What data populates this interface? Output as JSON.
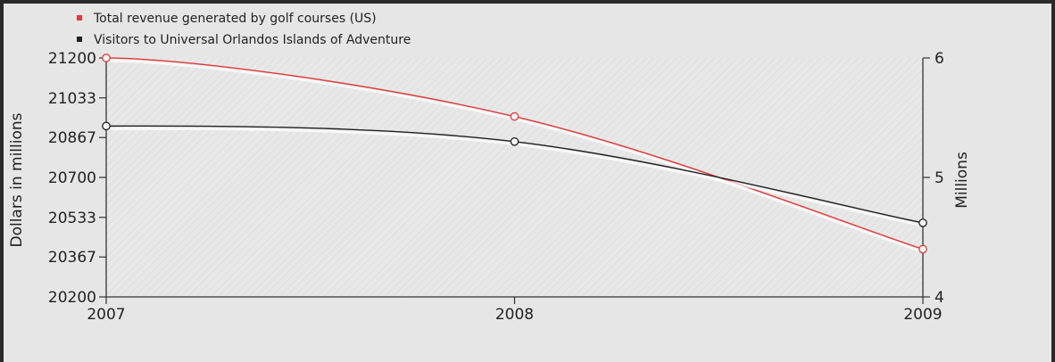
{
  "chart_data": {
    "type": "line",
    "x": [
      "2007",
      "2008",
      "2009"
    ],
    "series": [
      {
        "name": "Total revenue generated by golf courses (US)",
        "axis": "left",
        "color": "#e03a3a",
        "values": [
          21200,
          20955,
          20400
        ]
      },
      {
        "name": "Visitors to Universal Orlandos Islands of Adventure",
        "axis": "right",
        "color": "#222222",
        "values": [
          5.43,
          5.3,
          4.62
        ]
      }
    ],
    "y_left": {
      "label": "Dollars in millions",
      "ticks": [
        "21200",
        "21033",
        "20867",
        "20700",
        "20533",
        "20367",
        "20200"
      ],
      "range": [
        20200,
        21200
      ]
    },
    "y_right": {
      "label": "Millions",
      "ticks": [
        "6",
        "5",
        "4"
      ],
      "range": [
        4,
        6
      ]
    },
    "legend_position": "top-left",
    "grid": false
  }
}
